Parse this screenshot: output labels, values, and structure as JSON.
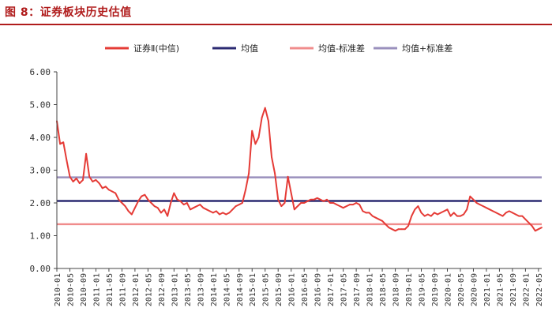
{
  "figure_title": "图 8：证券板块历史估值",
  "colors": {
    "title_text": "#b01c1c",
    "title_rule": "#b01c1c",
    "series": "#e53b36",
    "mean": "#2b2a72",
    "mean_minus_std": "#f08c8c",
    "mean_plus_std": "#9a90bd",
    "axis": "#444444",
    "tick_text": "#333333"
  },
  "chart_data": {
    "type": "line",
    "title": "",
    "xlabel": "",
    "ylabel": "",
    "ylim": [
      0,
      6
    ],
    "yticks": [
      0,
      1,
      2,
      3,
      4,
      5,
      6
    ],
    "ytick_labels": [
      "0.00",
      "1.00",
      "2.00",
      "3.00",
      "4.00",
      "5.00",
      "6.00"
    ],
    "x_start": "2010-01",
    "x_end": "2022-06",
    "xtick_labels": [
      "2010-01",
      "2010-05",
      "2010-09",
      "2011-01",
      "2011-05",
      "2011-09",
      "2012-01",
      "2012-05",
      "2012-09",
      "2013-01",
      "2013-05",
      "2013-09",
      "2014-01",
      "2014-05",
      "2014-09",
      "2015-01",
      "2015-05",
      "2015-09",
      "2016-01",
      "2016-05",
      "2016-09",
      "2017-01",
      "2017-05",
      "2017-09",
      "2018-01",
      "2018-05",
      "2018-09",
      "2019-01",
      "2019-05",
      "2019-09",
      "2020-01",
      "2020-05",
      "2020-09",
      "2021-01",
      "2021-05",
      "2021-09",
      "2022-01",
      "2022-05"
    ],
    "grid": false,
    "legend_position": "top",
    "series": [
      {
        "name": "证券Ⅱ(中信)",
        "kind": "line",
        "x": [
          "2010-01",
          "2010-02",
          "2010-03",
          "2010-04",
          "2010-05",
          "2010-06",
          "2010-07",
          "2010-08",
          "2010-09",
          "2010-10",
          "2010-11",
          "2010-12",
          "2011-01",
          "2011-02",
          "2011-03",
          "2011-04",
          "2011-05",
          "2011-06",
          "2011-07",
          "2011-08",
          "2011-09",
          "2011-10",
          "2011-11",
          "2011-12",
          "2012-01",
          "2012-02",
          "2012-03",
          "2012-04",
          "2012-05",
          "2012-06",
          "2012-07",
          "2012-08",
          "2012-09",
          "2012-10",
          "2012-11",
          "2012-12",
          "2013-01",
          "2013-02",
          "2013-03",
          "2013-04",
          "2013-05",
          "2013-06",
          "2013-07",
          "2013-08",
          "2013-09",
          "2013-10",
          "2013-11",
          "2013-12",
          "2014-01",
          "2014-02",
          "2014-03",
          "2014-04",
          "2014-05",
          "2014-06",
          "2014-07",
          "2014-08",
          "2014-09",
          "2014-10",
          "2014-11",
          "2014-12",
          "2015-01",
          "2015-02",
          "2015-03",
          "2015-04",
          "2015-05",
          "2015-06",
          "2015-07",
          "2015-08",
          "2015-09",
          "2015-10",
          "2015-11",
          "2015-12",
          "2016-01",
          "2016-02",
          "2016-03",
          "2016-04",
          "2016-05",
          "2016-06",
          "2016-07",
          "2016-08",
          "2016-09",
          "2016-10",
          "2016-11",
          "2016-12",
          "2017-01",
          "2017-02",
          "2017-03",
          "2017-04",
          "2017-05",
          "2017-06",
          "2017-07",
          "2017-08",
          "2017-09",
          "2017-10",
          "2017-11",
          "2017-12",
          "2018-01",
          "2018-02",
          "2018-03",
          "2018-04",
          "2018-05",
          "2018-06",
          "2018-07",
          "2018-08",
          "2018-09",
          "2018-10",
          "2018-11",
          "2018-12",
          "2019-01",
          "2019-02",
          "2019-03",
          "2019-04",
          "2019-05",
          "2019-06",
          "2019-07",
          "2019-08",
          "2019-09",
          "2019-10",
          "2019-11",
          "2019-12",
          "2020-01",
          "2020-02",
          "2020-03",
          "2020-04",
          "2020-05",
          "2020-06",
          "2020-07",
          "2020-08",
          "2020-09",
          "2020-10",
          "2020-11",
          "2020-12",
          "2021-01",
          "2021-02",
          "2021-03",
          "2021-04",
          "2021-05",
          "2021-06",
          "2021-07",
          "2021-08",
          "2021-09",
          "2021-10",
          "2021-11",
          "2021-12",
          "2022-01",
          "2022-02",
          "2022-03",
          "2022-04",
          "2022-05",
          "2022-06"
        ],
        "y": [
          4.5,
          3.8,
          3.85,
          3.3,
          2.8,
          2.65,
          2.75,
          2.6,
          2.7,
          3.5,
          2.8,
          2.65,
          2.7,
          2.6,
          2.45,
          2.5,
          2.4,
          2.35,
          2.3,
          2.1,
          2.0,
          1.9,
          1.75,
          1.65,
          1.85,
          2.05,
          2.2,
          2.25,
          2.1,
          2.0,
          1.9,
          1.85,
          1.7,
          1.8,
          1.6,
          2.0,
          2.3,
          2.1,
          2.05,
          1.95,
          2.0,
          1.8,
          1.85,
          1.9,
          1.95,
          1.85,
          1.8,
          1.75,
          1.7,
          1.75,
          1.65,
          1.7,
          1.65,
          1.7,
          1.8,
          1.9,
          1.95,
          2.0,
          2.4,
          2.9,
          4.2,
          3.8,
          4.0,
          4.6,
          4.9,
          4.5,
          3.4,
          2.9,
          2.1,
          1.9,
          2.0,
          2.8,
          2.3,
          1.8,
          1.9,
          2.0,
          2.0,
          2.05,
          2.1,
          2.1,
          2.15,
          2.1,
          2.05,
          2.1,
          2.0,
          2.0,
          1.95,
          1.9,
          1.85,
          1.9,
          1.95,
          1.95,
          2.0,
          1.95,
          1.75,
          1.7,
          1.7,
          1.6,
          1.55,
          1.5,
          1.45,
          1.35,
          1.25,
          1.2,
          1.15,
          1.2,
          1.2,
          1.2,
          1.3,
          1.6,
          1.8,
          1.9,
          1.7,
          1.6,
          1.65,
          1.6,
          1.7,
          1.65,
          1.7,
          1.75,
          1.8,
          1.6,
          1.7,
          1.6,
          1.6,
          1.65,
          1.8,
          2.2,
          2.1,
          2.0,
          1.95,
          1.9,
          1.85,
          1.8,
          1.75,
          1.7,
          1.65,
          1.6,
          1.7,
          1.75,
          1.7,
          1.65,
          1.6,
          1.6,
          1.5,
          1.4,
          1.3,
          1.15,
          1.2,
          1.25
        ]
      },
      {
        "name": "均值",
        "kind": "hline",
        "value": 2.06
      },
      {
        "name": "均值-标准差",
        "kind": "hline",
        "value": 1.35
      },
      {
        "name": "均值+标准差",
        "kind": "hline",
        "value": 2.78
      }
    ]
  }
}
